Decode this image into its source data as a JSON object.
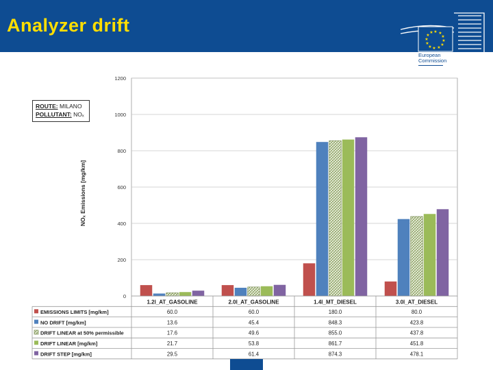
{
  "page": {
    "title": "Analyzer drift"
  },
  "logo": {
    "line1": "European",
    "line2": "Commission"
  },
  "info_box": {
    "route_label": "ROUTE:",
    "route_value": "MILANO",
    "pollutant_label": "POLLUTANT:",
    "pollutant_value": "NOₓ"
  },
  "chart_data": {
    "type": "bar",
    "ylabel": "NOₓ Emissions [mg/km]",
    "ylim": [
      0,
      1200
    ],
    "yticks": [
      "0",
      "200",
      "400",
      "600",
      "800",
      "1000",
      "1200"
    ],
    "categories": [
      "1.2l_AT_GASOLINE",
      "2.0l_AT_GASOLINE",
      "1.4l_MT_DIESEL",
      "3.0l_AT_DIESEL"
    ],
    "series": [
      {
        "name": "EMISSIONS LIMITS [mg/km]",
        "color": "#c0504d",
        "values": [
          60.0,
          60.0,
          180.0,
          80.0
        ],
        "labels": [
          "60.0",
          "60.0",
          "180.0",
          "80.0"
        ]
      },
      {
        "name": "NO DRIFT [mg/km]",
        "color": "#4f81bd",
        "values": [
          13.6,
          45.4,
          848.3,
          423.8
        ],
        "labels": [
          "13.6",
          "45.4",
          "848.3",
          "423.8"
        ]
      },
      {
        "name": "DRIFT LINEAR at 50% permissible",
        "color": "#e6ecd6",
        "pattern": "hatched",
        "values": [
          17.6,
          49.6,
          855.0,
          437.8
        ],
        "labels": [
          "17.6",
          "49.6",
          "855.0",
          "437.8"
        ]
      },
      {
        "name": "DRIFT LINEAR [mg/km]",
        "color": "#9bbb59",
        "values": [
          21.7,
          53.8,
          861.7,
          451.8
        ],
        "labels": [
          "21.7",
          "53.8",
          "861.7",
          "451.8"
        ]
      },
      {
        "name": "DRIFT STEP [mg/km]",
        "color": "#8064a2",
        "values": [
          29.5,
          61.4,
          874.3,
          478.1
        ],
        "labels": [
          "29.5",
          "61.4",
          "874.3",
          "478.1"
        ]
      }
    ],
    "grid": true,
    "legend": "data-table-left"
  }
}
